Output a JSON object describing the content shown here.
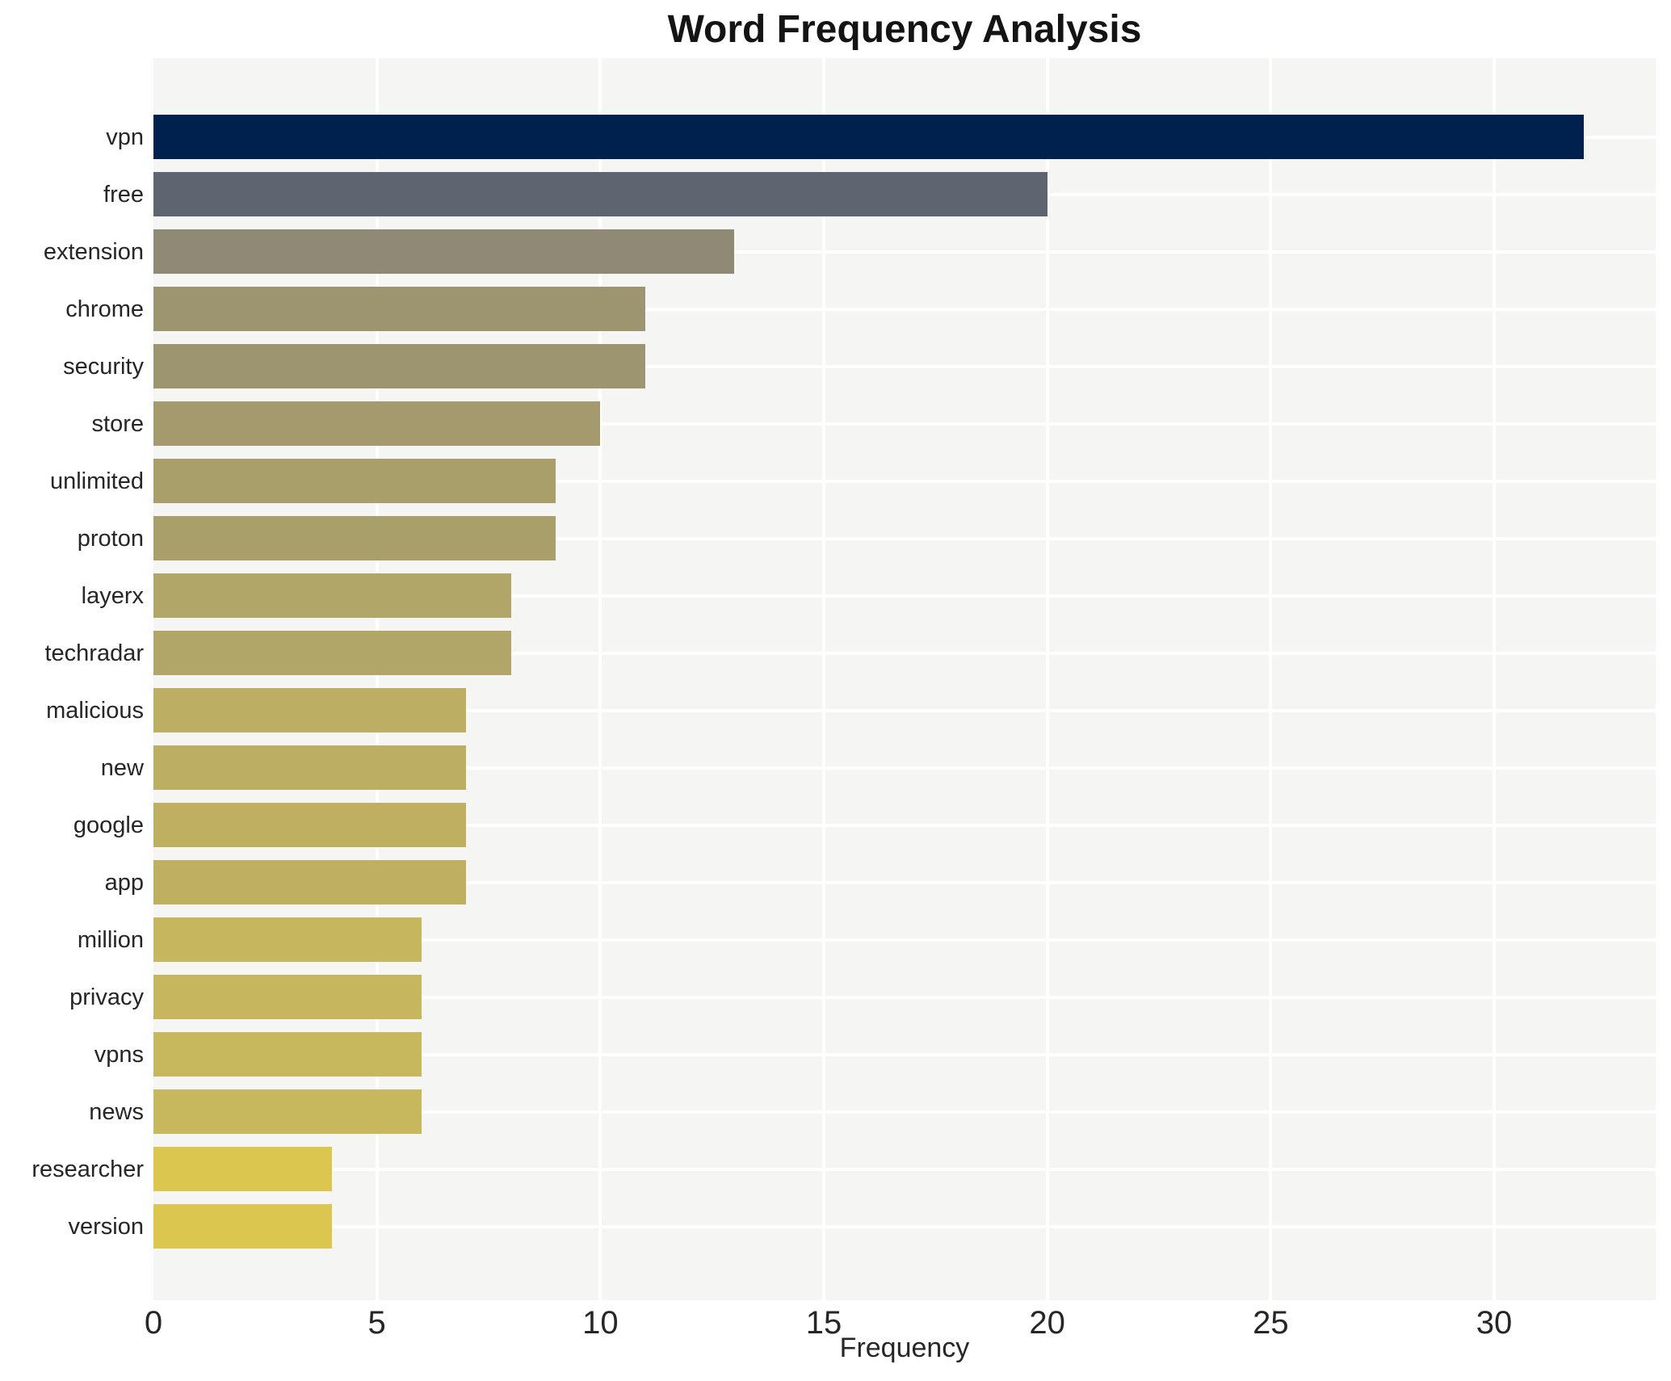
{
  "chart_data": {
    "type": "bar",
    "orientation": "horizontal",
    "title": "Word Frequency Analysis",
    "xlabel": "Frequency",
    "ylabel": "",
    "categories": [
      "vpn",
      "free",
      "extension",
      "chrome",
      "security",
      "store",
      "unlimited",
      "proton",
      "layerx",
      "techradar",
      "malicious",
      "new",
      "google",
      "app",
      "million",
      "privacy",
      "vpns",
      "news",
      "researcher",
      "version"
    ],
    "values": [
      32,
      20,
      13,
      11,
      11,
      10,
      9,
      9,
      8,
      8,
      7,
      7,
      7,
      7,
      6,
      6,
      6,
      6,
      4,
      4
    ],
    "bar_colors": [
      "#00214d",
      "#5e6470",
      "#8f8975",
      "#9d9470",
      "#9d9470",
      "#a49a6e",
      "#a99f6b",
      "#a99f6b",
      "#b1a568",
      "#b1a568",
      "#bcae63",
      "#bcae63",
      "#bfb061",
      "#bfb061",
      "#c6b65e",
      "#c6b65e",
      "#c8b85d",
      "#c8b85d",
      "#dbc64f",
      "#dbc64f"
    ],
    "x_ticks": [
      0,
      5,
      10,
      15,
      20,
      25,
      30
    ],
    "x_tick_labels": [
      "0",
      "5",
      "10",
      "15",
      "20",
      "25",
      "30"
    ],
    "xlim": [
      0,
      33.6
    ],
    "grid": true,
    "legend": false,
    "colors": {
      "page_background": "#ffffff",
      "plot_background": "#f5f5f3",
      "gridline": "#ffffff",
      "tick_text": "#262626",
      "title_text": "#141414"
    }
  }
}
